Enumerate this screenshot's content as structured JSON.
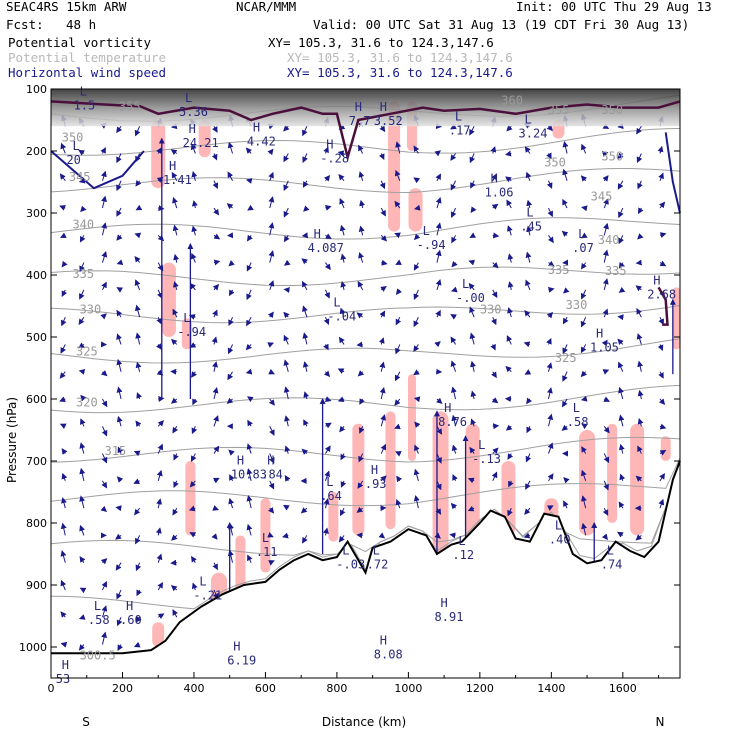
{
  "header": {
    "model": "SEAC4RS 15km ARW",
    "center": "NCAR/MMM",
    "init": "Init: 00 UTC Thu 29 Aug 13",
    "fcst_label": "Fcst:",
    "fcst_value": "48 h",
    "valid": "Valid: 00 UTC Sat 31 Aug 13 (19 CDT Fri 30 Aug 13)",
    "fields": [
      {
        "name": "Potential vorticity",
        "xy": "XY= 105.3, 31.6 to 124.3,147.6",
        "color": "#000000"
      },
      {
        "name": "Potential temperature",
        "xy": "XY= 105.3, 31.6 to 124.3,147.6",
        "color": "#b8b8b8"
      },
      {
        "name": "Horizontal wind speed",
        "xy": "XY= 105.3, 31.6 to 124.3,147.6",
        "color": "#1a1a8c"
      }
    ]
  },
  "chart_data": {
    "type": "cross-section",
    "xlabel": "Distance (km)",
    "ylabel": "Pressure (hPa)",
    "xlim": [
      0,
      1760
    ],
    "ylim": [
      1050,
      100
    ],
    "x_ticks": [
      0,
      200,
      400,
      600,
      800,
      1000,
      1200,
      1400,
      1600
    ],
    "y_ticks": [
      100,
      200,
      300,
      400,
      500,
      600,
      700,
      800,
      900,
      1000
    ],
    "end_labels": {
      "left": "S",
      "right": "N"
    },
    "colors": {
      "theta": "#a0a0a0",
      "pv": "#ffb6b6",
      "wind": "#1a1a8c",
      "terrain": "#000000",
      "tropopause": "#4b0f3c"
    },
    "theta_labels": [
      {
        "text": "355",
        "x": 190,
        "p": 135
      },
      {
        "text": "350",
        "x": 30,
        "p": 185
      },
      {
        "text": "345",
        "x": 50,
        "p": 248
      },
      {
        "text": "340",
        "x": 60,
        "p": 325
      },
      {
        "text": "335",
        "x": 60,
        "p": 405
      },
      {
        "text": "330",
        "x": 80,
        "p": 462
      },
      {
        "text": "325",
        "x": 70,
        "p": 530
      },
      {
        "text": "320",
        "x": 70,
        "p": 612
      },
      {
        "text": "315",
        "x": 150,
        "p": 690
      },
      {
        "text": "360",
        "x": 1260,
        "p": 125
      },
      {
        "text": "355",
        "x": 1390,
        "p": 140
      },
      {
        "text": "350",
        "x": 1540,
        "p": 140
      },
      {
        "text": "350",
        "x": 1380,
        "p": 225
      },
      {
        "text": "350",
        "x": 1540,
        "p": 215
      },
      {
        "text": "345",
        "x": 1510,
        "p": 280
      },
      {
        "text": "340",
        "x": 1530,
        "p": 350
      },
      {
        "text": "335",
        "x": 1390,
        "p": 398
      },
      {
        "text": "335",
        "x": 1550,
        "p": 400
      },
      {
        "text": "330",
        "x": 1200,
        "p": 462
      },
      {
        "text": "330",
        "x": 1440,
        "p": 455
      },
      {
        "text": "325",
        "x": 1410,
        "p": 540
      },
      {
        "text": "300.5",
        "x": 80,
        "p": 1020
      }
    ],
    "hl_labels": [
      {
        "type": "L",
        "value": "1.5",
        "x": 80,
        "p": 130
      },
      {
        "type": "L",
        "value": "20",
        "x": 60,
        "p": 218
      },
      {
        "type": "L",
        "value": "5.36",
        "x": 375,
        "p": 140
      },
      {
        "type": "H",
        "value": "24.21",
        "x": 385,
        "p": 190
      },
      {
        "type": "H",
        "value": "1.41",
        "x": 330,
        "p": 250
      },
      {
        "type": "H",
        "value": "4.42",
        "x": 565,
        "p": 188
      },
      {
        "type": "H",
        "value": "-.28",
        "x": 770,
        "p": 215
      },
      {
        "type": "H",
        "value": "7.7",
        "x": 850,
        "p": 155
      },
      {
        "type": "H",
        "value": "3.52",
        "x": 920,
        "p": 155
      },
      {
        "type": "L",
        "value": ".17",
        "x": 1130,
        "p": 170
      },
      {
        "type": "L",
        "value": "3.24",
        "x": 1325,
        "p": 175
      },
      {
        "type": "H",
        "value": "1.06",
        "x": 1230,
        "p": 270
      },
      {
        "type": "L",
        "value": ".45",
        "x": 1330,
        "p": 325
      },
      {
        "type": "L",
        "value": ".07",
        "x": 1475,
        "p": 360
      },
      {
        "type": "H",
        "value": "4.087",
        "x": 735,
        "p": 360
      },
      {
        "type": "L",
        "value": "-.94",
        "x": 1040,
        "p": 355
      },
      {
        "type": "L",
        "value": "-.00",
        "x": 1150,
        "p": 440
      },
      {
        "type": "H",
        "value": "2.68",
        "x": 1685,
        "p": 435
      },
      {
        "type": "L",
        "value": "-.04",
        "x": 790,
        "p": 470
      },
      {
        "type": "L",
        "value": "-.94",
        "x": 370,
        "p": 495
      },
      {
        "type": "H",
        "value": "1.05",
        "x": 1525,
        "p": 520
      },
      {
        "type": "L",
        "value": ".58",
        "x": 1460,
        "p": 640
      },
      {
        "type": "H",
        "value": "8.76",
        "x": 1100,
        "p": 640
      },
      {
        "type": "L",
        "value": "-.13",
        "x": 1195,
        "p": 700
      },
      {
        "type": "H",
        "value": "10.83",
        "x": 520,
        "p": 725
      },
      {
        "type": "H",
        "value": ".84",
        "x": 605,
        "p": 725
      },
      {
        "type": "H",
        "value": ".93",
        "x": 895,
        "p": 740
      },
      {
        "type": "L",
        "value": ".64",
        "x": 770,
        "p": 760
      },
      {
        "type": "L",
        "value": ".11",
        "x": 590,
        "p": 850
      },
      {
        "type": "L",
        "value": ".40",
        "x": 1410,
        "p": 830
      },
      {
        "type": "L",
        "value": ".12",
        "x": 1140,
        "p": 855
      },
      {
        "type": "L",
        "value": "-.03",
        "x": 815,
        "p": 870
      },
      {
        "type": "L",
        "value": ".72",
        "x": 900,
        "p": 870
      },
      {
        "type": "L",
        "value": ".74",
        "x": 1555,
        "p": 870
      },
      {
        "type": "L",
        "value": "-.21",
        "x": 415,
        "p": 920
      },
      {
        "type": "L",
        "value": ".58",
        "x": 120,
        "p": 960
      },
      {
        "type": "H",
        "value": ".60",
        "x": 210,
        "p": 960
      },
      {
        "type": "H",
        "value": "8.91",
        "x": 1090,
        "p": 955
      },
      {
        "type": "H",
        "value": "8.08",
        "x": 920,
        "p": 1015
      },
      {
        "type": "H",
        "value": "6.19",
        "x": 510,
        "p": 1025
      },
      {
        "type": "H",
        "value": "53",
        "x": 30,
        "p": 1055
      }
    ]
  }
}
